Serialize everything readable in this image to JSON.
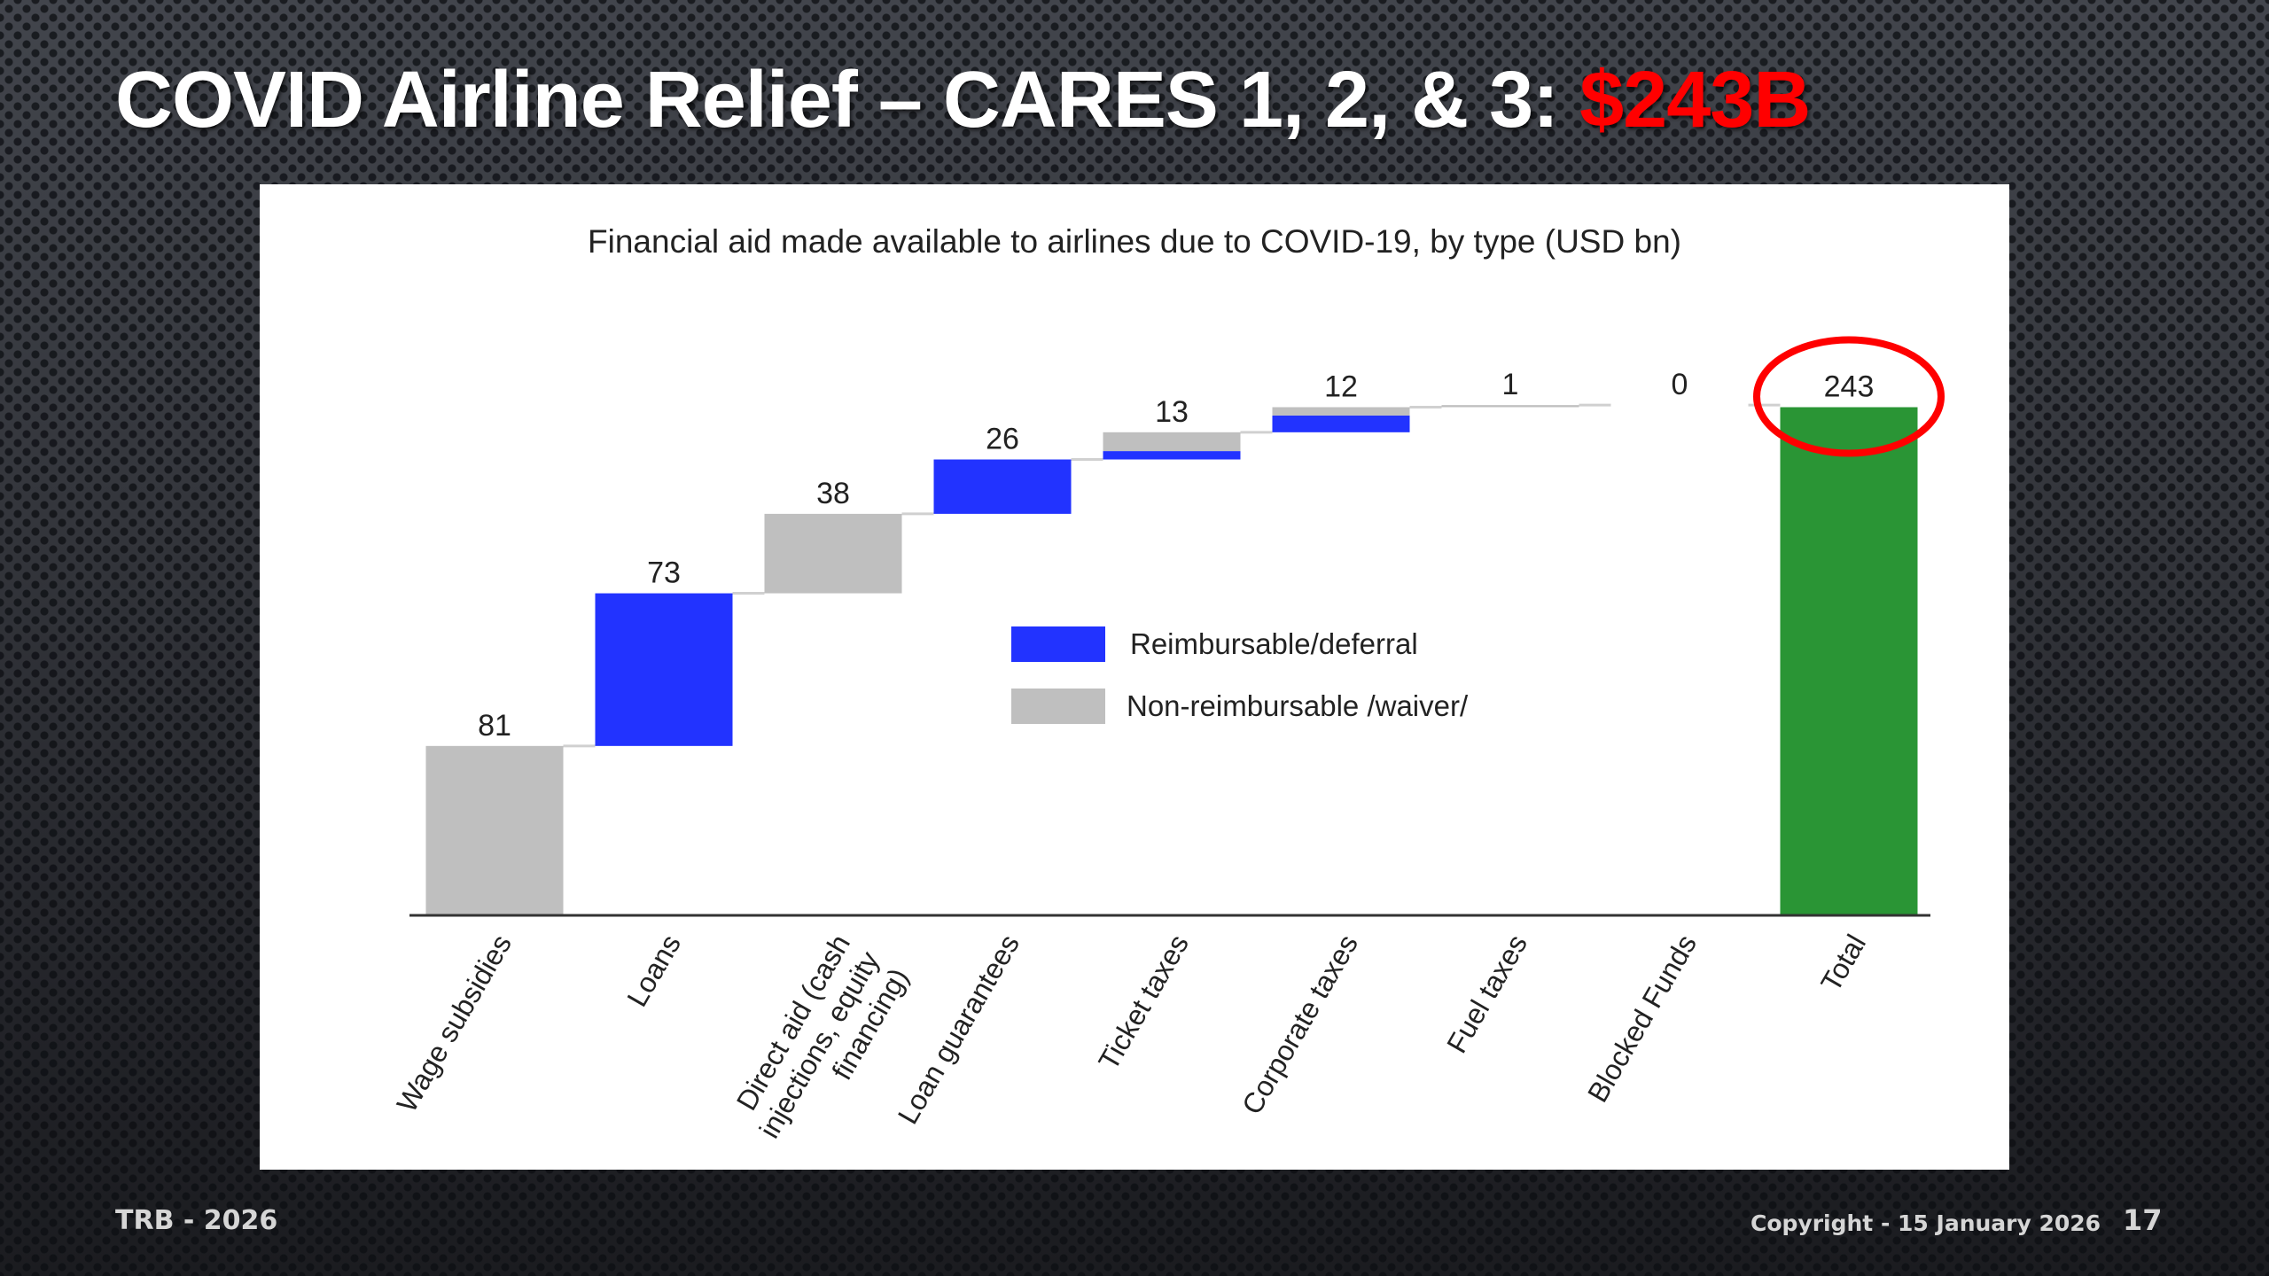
{
  "slide": {
    "title_main": "COVID Airline Relief – CARES 1, 2, & 3: ",
    "title_accent": "$243B",
    "accent_color": "#ff0000",
    "footer_left": "TRB - 2026",
    "footer_copyright": "Copyright - 15 January 2026",
    "page_number": "17"
  },
  "chart_data": {
    "type": "bar",
    "subtype": "waterfall",
    "title": "Financial aid made available to airlines due to COVID-19, by type (USD bn)",
    "xlabel": "",
    "ylabel": "",
    "ylim": [
      0,
      243
    ],
    "grid": false,
    "legend_position": "center",
    "categories": [
      "Wage subsidies",
      "Loans",
      "Direct aid (cash injections, equity financing)",
      "Loan guarantees",
      "Ticket taxes",
      "Corporate taxes",
      "Fuel taxes",
      "Blocked Funds",
      "Total"
    ],
    "category_label_lines": [
      [
        "Wage subsidies"
      ],
      [
        "Loans"
      ],
      [
        "Direct aid (cash",
        "injections, equity",
        "financing)"
      ],
      [
        "Loan guarantees"
      ],
      [
        "Ticket taxes"
      ],
      [
        "Corporate taxes"
      ],
      [
        "Fuel taxes"
      ],
      [
        "Blocked Funds"
      ],
      [
        "Total"
      ]
    ],
    "values": [
      81,
      73,
      38,
      26,
      13,
      12,
      1,
      0,
      243
    ],
    "value_labels": [
      "81",
      "73",
      "38",
      "26",
      "13",
      "12",
      "1",
      "0",
      "243"
    ],
    "series": [
      {
        "name": "Reimbursable/deferral",
        "color": "#2233ff",
        "values": [
          0,
          73,
          0,
          26,
          4,
          8,
          0,
          0,
          0
        ]
      },
      {
        "name": "Non-reimbursable /waiver/",
        "color": "#bfbfbf",
        "values": [
          81,
          0,
          38,
          0,
          9,
          4,
          1,
          0,
          0
        ]
      },
      {
        "name": "Total",
        "color": "#2a9535",
        "values": [
          0,
          0,
          0,
          0,
          0,
          0,
          0,
          0,
          243
        ]
      }
    ],
    "legend": [
      {
        "label": "Reimbursable/deferral",
        "color": "#2233ff"
      },
      {
        "label": "Non-reimbursable /waiver/",
        "color": "#bfbfbf"
      }
    ],
    "annotation": {
      "type": "circle",
      "target": "Total",
      "color": "#ff0000"
    }
  }
}
